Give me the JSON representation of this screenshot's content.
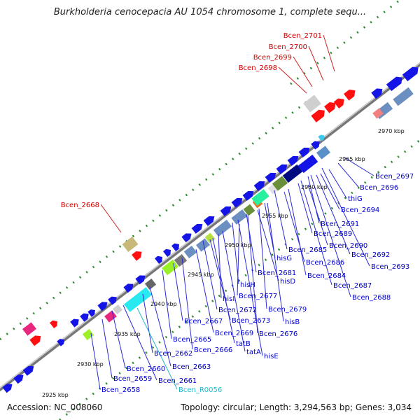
{
  "title": "Burkholderia cenocepacia AU 1054 chromosome 1, complete sequ...",
  "footer": {
    "accession": "Accession: NC_008060",
    "summary": "Topology: circular; Length: 3,294,563 bp; Genes: 3,034"
  },
  "colors": {
    "backbone": "#8c8c8c",
    "tick_dots": "#2e8b2e",
    "forward_gene": "#1414e6",
    "label_blue": "#0000cc",
    "label_red": "#cc0000",
    "label_cyan": "#22b8cc",
    "leader_blue": "#2a2ad6",
    "leader_red": "#cc2222"
  },
  "scale_ticks": [
    {
      "label": "2925 kbp"
    },
    {
      "label": "2930 kbp"
    },
    {
      "label": "2935 kbp"
    },
    {
      "label": "2940 kbp"
    },
    {
      "label": "2945 kbp"
    },
    {
      "label": "2950 kbp"
    },
    {
      "label": "2955 kbp"
    },
    {
      "label": "2960 kbp"
    },
    {
      "label": "2965 kbp"
    },
    {
      "label": "2970 kbp"
    }
  ],
  "gene_labels_red": [
    "Bcen_2701",
    "Bcen_2700",
    "Bcen_2699",
    "Bcen_2698",
    "Bcen_2668"
  ],
  "gene_labels_blue": [
    "Bcen_2697",
    "Bcen_2696",
    "thiG",
    "Bcen_2694",
    "Bcen_2691",
    "Bcen_2689",
    "Bcen_2690",
    "Bcen_2692",
    "Bcen_2685",
    "Bcen_2686",
    "Bcen_2693",
    "hisG",
    "Bcen_2684",
    "Bcen_2681",
    "hisD",
    "Bcen_2687",
    "Bcen_2688",
    "hisH",
    "Bcen_2677",
    "hisI",
    "Bcen_2679",
    "Bcen_2672",
    "Bcen_2673",
    "hisB",
    "Bcen_2667",
    "Bcen_2669",
    "Bcen_2676",
    "Bcen_2665",
    "tatB",
    "Bcen_2666",
    "tatA",
    "hisE",
    "Bcen_2662",
    "Bcen_2663",
    "Bcen_2660",
    "Bcen_2659",
    "Bcen_2661",
    "Bcen_2658"
  ],
  "gene_labels_cyan": [
    "Bcen_R0056"
  ]
}
